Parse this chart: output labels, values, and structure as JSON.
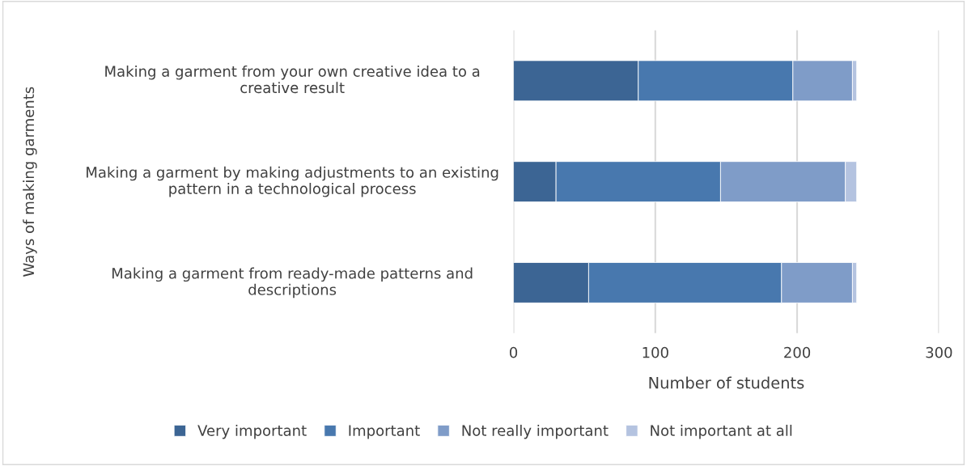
{
  "chart_data": {
    "type": "bar",
    "orientation": "horizontal",
    "stacked": true,
    "categories": [
      "Making a garment from your own creative idea to a creative result",
      "Making a garment by making adjustments to an existing pattern in a technological process",
      "Making a garment from ready-made patterns and descriptions"
    ],
    "series": [
      {
        "name": "Very important",
        "color": "#3c6594",
        "values": [
          88,
          30,
          53
        ]
      },
      {
        "name": "Important",
        "color": "#4878ae",
        "values": [
          109,
          116,
          136
        ]
      },
      {
        "name": "Not really important",
        "color": "#7f9cc8",
        "values": [
          42,
          88,
          50
        ]
      },
      {
        "name": "Not important at all",
        "color": "#b4c3e0",
        "values": [
          3,
          8,
          3
        ]
      }
    ],
    "xlim": [
      0,
      300
    ],
    "xticks": [
      0,
      100,
      200,
      300
    ],
    "xlabel": "Number of students",
    "ylabel": "Ways of making garments",
    "grid": "x",
    "legend": "bottom"
  }
}
